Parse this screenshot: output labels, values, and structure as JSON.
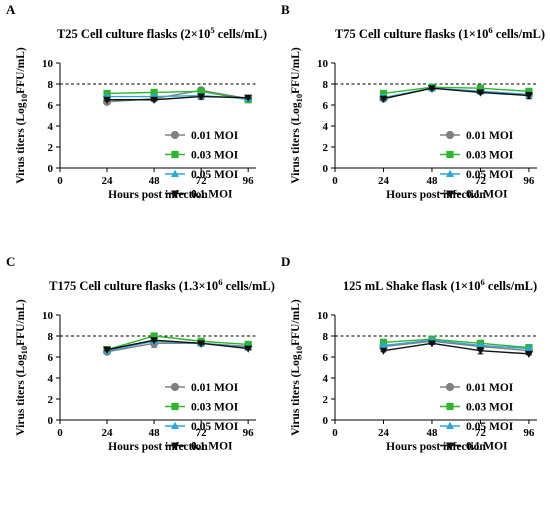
{
  "figure": {
    "series_colors": [
      "#808080",
      "#2fb52f",
      "#2fa6d8",
      "#111111"
    ],
    "series_markers": [
      "circle",
      "square",
      "triangle-up",
      "triangle-down"
    ],
    "reference_line_y": 8,
    "reference_line_style": "dashed"
  },
  "chart_data": [
    {
      "type": "line",
      "panel_label": "A",
      "title_parts": [
        "T25 Cell culture flasks (2×10",
        "5",
        " cells/mL)"
      ],
      "xlabel": "Hours post infection",
      "ylabel_parts": [
        "Virus titers (Log",
        "10",
        "FFU/mL)"
      ],
      "x": [
        24,
        48,
        72,
        96
      ],
      "xticks": [
        "0",
        "24",
        "48",
        "72",
        "96"
      ],
      "yticks": [
        "0",
        "2",
        "4",
        "6",
        "8",
        "10"
      ],
      "xlim": [
        0,
        100
      ],
      "ylim": [
        0,
        10
      ],
      "legend_position": "right-lower",
      "series": [
        {
          "name": "0.01 MOI",
          "values": [
            6.3,
            6.6,
            7.4,
            6.6
          ],
          "errors": [
            0.15,
            0.15,
            0.1,
            0.15
          ]
        },
        {
          "name": "0.03 MOI",
          "values": [
            7.1,
            7.2,
            7.3,
            6.5
          ],
          "errors": [
            0.1,
            0.1,
            0.1,
            0.1
          ]
        },
        {
          "name": "0.05 MOI",
          "values": [
            6.8,
            6.8,
            6.9,
            6.6
          ],
          "errors": [
            0.1,
            0.1,
            0.1,
            0.1
          ]
        },
        {
          "name": "0.1 MOI",
          "values": [
            6.5,
            6.5,
            6.8,
            6.7
          ],
          "errors": [
            0.1,
            0.1,
            0.25,
            0.1
          ]
        }
      ]
    },
    {
      "type": "line",
      "panel_label": "B",
      "title_parts": [
        "T75 Cell culture flasks (1×10",
        "6",
        " cells/mL)"
      ],
      "xlabel": "Hours post infection",
      "ylabel_parts": [
        "Virus titers (Log",
        "10",
        "FFU/mL)"
      ],
      "x": [
        24,
        48,
        72,
        96
      ],
      "xticks": [
        "0",
        "24",
        "48",
        "72",
        "96"
      ],
      "yticks": [
        "0",
        "2",
        "4",
        "6",
        "8",
        "10"
      ],
      "xlim": [
        0,
        100
      ],
      "ylim": [
        0,
        10
      ],
      "legend_position": "right-lower",
      "series": [
        {
          "name": "0.01 MOI",
          "values": [
            6.6,
            7.6,
            7.3,
            7.0
          ],
          "errors": [
            0.1,
            0.1,
            0.1,
            0.1
          ]
        },
        {
          "name": "0.03 MOI",
          "values": [
            7.1,
            7.7,
            7.6,
            7.3
          ],
          "errors": [
            0.1,
            0.1,
            0.1,
            0.1
          ]
        },
        {
          "name": "0.05 MOI",
          "values": [
            6.7,
            7.6,
            7.3,
            7.0
          ],
          "errors": [
            0.3,
            0.1,
            0.1,
            0.2
          ]
        },
        {
          "name": "0.1 MOI",
          "values": [
            6.6,
            7.6,
            7.2,
            6.9
          ],
          "errors": [
            0.1,
            0.1,
            0.1,
            0.3
          ]
        }
      ]
    },
    {
      "type": "line",
      "panel_label": "C",
      "title_parts": [
        "T175 Cell culture flasks (1.3×10",
        "6",
        " cells/mL)"
      ],
      "xlabel": "Hours post infection",
      "ylabel_parts": [
        "Virus titers (Log",
        "10",
        "FFU/mL)"
      ],
      "x": [
        24,
        48,
        72,
        96
      ],
      "xticks": [
        "0",
        "24",
        "48",
        "72",
        "96"
      ],
      "yticks": [
        "0",
        "2",
        "4",
        "6",
        "8",
        "10"
      ],
      "xlim": [
        0,
        100
      ],
      "ylim": [
        0,
        10
      ],
      "legend_position": "right-lower",
      "series": [
        {
          "name": "0.01 MOI",
          "values": [
            6.5,
            7.3,
            7.3,
            7.0
          ],
          "errors": [
            0.1,
            0.4,
            0.1,
            0.1
          ]
        },
        {
          "name": "0.03 MOI",
          "values": [
            6.7,
            8.0,
            7.5,
            7.2
          ],
          "errors": [
            0.1,
            0.1,
            0.1,
            0.1
          ]
        },
        {
          "name": "0.05 MOI",
          "values": [
            6.6,
            7.5,
            7.3,
            6.9
          ],
          "errors": [
            0.1,
            0.2,
            0.1,
            0.1
          ]
        },
        {
          "name": "0.1 MOI",
          "values": [
            6.7,
            7.6,
            7.3,
            6.8
          ],
          "errors": [
            0.1,
            0.1,
            0.1,
            0.1
          ]
        }
      ]
    },
    {
      "type": "line",
      "panel_label": "D",
      "title_parts": [
        "125 mL Shake flask  (1×10",
        "6",
        " cells/mL)"
      ],
      "xlabel": "Hours post infection",
      "ylabel_parts": [
        "Virus titers (Log",
        "10",
        "FFU/mL)"
      ],
      "x": [
        24,
        48,
        72,
        96
      ],
      "xticks": [
        "0",
        "24",
        "48",
        "72",
        "96"
      ],
      "yticks": [
        "0",
        "2",
        "4",
        "6",
        "8",
        "10"
      ],
      "xlim": [
        0,
        100
      ],
      "ylim": [
        0,
        10
      ],
      "legend_position": "right-lower",
      "series": [
        {
          "name": "0.01 MOI",
          "values": [
            7.0,
            7.5,
            7.0,
            6.6
          ],
          "errors": [
            0.1,
            0.1,
            0.1,
            0.1
          ]
        },
        {
          "name": "0.03 MOI",
          "values": [
            7.4,
            7.7,
            7.3,
            6.9
          ],
          "errors": [
            0.1,
            0.1,
            0.1,
            0.1
          ]
        },
        {
          "name": "0.05 MOI",
          "values": [
            7.1,
            7.6,
            7.1,
            6.8
          ],
          "errors": [
            0.1,
            0.1,
            0.1,
            0.1
          ]
        },
        {
          "name": "0.1 MOI",
          "values": [
            6.6,
            7.3,
            6.6,
            6.3
          ],
          "errors": [
            0.1,
            0.1,
            0.3,
            0.1
          ]
        }
      ]
    }
  ]
}
